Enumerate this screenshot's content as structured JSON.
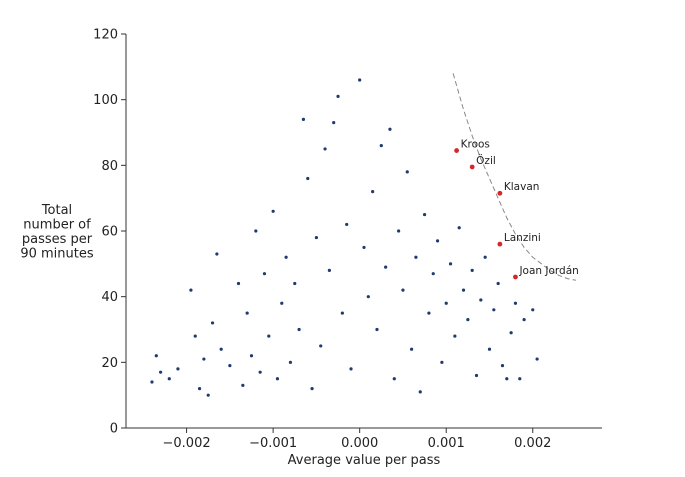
{
  "chart_data": {
    "type": "scatter",
    "xlabel": "Average value per pass",
    "ylabel_lines": [
      "Total",
      "number of",
      "passes per",
      "90 minutes"
    ],
    "xlim": [
      -0.0027,
      0.0028
    ],
    "ylim": [
      0,
      120
    ],
    "x_ticks": [
      -0.002,
      -0.001,
      0.0,
      0.001,
      0.002
    ],
    "x_tick_labels": [
      "−0.002",
      "−0.001",
      "0.000",
      "0.001",
      "0.002"
    ],
    "y_ticks": [
      0,
      20,
      40,
      60,
      80,
      100,
      120
    ],
    "y_tick_labels": [
      "0",
      "20",
      "40",
      "60",
      "80",
      "100",
      "120"
    ],
    "grid": false,
    "colors": {
      "points": "#1f3a6e",
      "highlight": "#d62728",
      "curve": "#888888"
    },
    "series": [
      {
        "role": "players",
        "points": [
          [
            -0.0024,
            14
          ],
          [
            -0.00235,
            22
          ],
          [
            -0.0023,
            17
          ],
          [
            -0.0022,
            15
          ],
          [
            -0.0021,
            18
          ],
          [
            -0.00195,
            42
          ],
          [
            -0.0019,
            28
          ],
          [
            -0.00185,
            12
          ],
          [
            -0.0018,
            21
          ],
          [
            -0.00175,
            10
          ],
          [
            -0.0017,
            32
          ],
          [
            -0.00165,
            53
          ],
          [
            -0.0016,
            24
          ],
          [
            -0.0015,
            19
          ],
          [
            -0.0014,
            44
          ],
          [
            -0.00135,
            13
          ],
          [
            -0.0013,
            35
          ],
          [
            -0.00125,
            22
          ],
          [
            -0.0012,
            60
          ],
          [
            -0.00115,
            17
          ],
          [
            -0.0011,
            47
          ],
          [
            -0.00105,
            28
          ],
          [
            -0.001,
            66
          ],
          [
            -0.00095,
            15
          ],
          [
            -0.0009,
            38
          ],
          [
            -0.00085,
            52
          ],
          [
            -0.0008,
            20
          ],
          [
            -0.00075,
            44
          ],
          [
            -0.0007,
            30
          ],
          [
            -0.00065,
            94
          ],
          [
            -0.0006,
            76
          ],
          [
            -0.00055,
            12
          ],
          [
            -0.0005,
            58
          ],
          [
            -0.00045,
            25
          ],
          [
            -0.0004,
            85
          ],
          [
            -0.00035,
            48
          ],
          [
            -0.0003,
            93
          ],
          [
            -0.00025,
            101
          ],
          [
            -0.0002,
            35
          ],
          [
            -0.00015,
            62
          ],
          [
            -0.0001,
            18
          ],
          [
            0.0,
            106
          ],
          [
            5e-05,
            55
          ],
          [
            0.0001,
            40
          ],
          [
            0.00015,
            72
          ],
          [
            0.0002,
            30
          ],
          [
            0.00025,
            86
          ],
          [
            0.0003,
            49
          ],
          [
            0.00035,
            91
          ],
          [
            0.0004,
            15
          ],
          [
            0.00045,
            60
          ],
          [
            0.0005,
            42
          ],
          [
            0.00055,
            78
          ],
          [
            0.0006,
            24
          ],
          [
            0.00065,
            52
          ],
          [
            0.0007,
            11
          ],
          [
            0.00075,
            65
          ],
          [
            0.0008,
            35
          ],
          [
            0.00085,
            47
          ],
          [
            0.0009,
            57
          ],
          [
            0.00095,
            20
          ],
          [
            0.001,
            38
          ],
          [
            0.00105,
            50
          ],
          [
            0.0011,
            28
          ],
          [
            0.00115,
            61
          ],
          [
            0.0012,
            42
          ],
          [
            0.00125,
            33
          ],
          [
            0.0013,
            48
          ],
          [
            0.00135,
            16
          ],
          [
            0.0014,
            39
          ],
          [
            0.00145,
            52
          ],
          [
            0.0015,
            24
          ],
          [
            0.00155,
            36
          ],
          [
            0.0016,
            44
          ],
          [
            0.00165,
            19
          ],
          [
            0.0017,
            15
          ],
          [
            0.00175,
            29
          ],
          [
            0.0018,
            38
          ],
          [
            0.00185,
            15
          ],
          [
            0.0019,
            33
          ],
          [
            0.002,
            36
          ],
          [
            0.00205,
            21
          ]
        ]
      },
      {
        "role": "highlighted",
        "points": [
          {
            "label": "Kroos",
            "x": 0.00112,
            "y": 84.5
          },
          {
            "label": "Özil",
            "x": 0.0013,
            "y": 79.5
          },
          {
            "label": "Klavan",
            "x": 0.00162,
            "y": 71.5
          },
          {
            "label": "Lanzini",
            "x": 0.00162,
            "y": 56
          },
          {
            "label": "Joan Jordán",
            "x": 0.0018,
            "y": 46
          }
        ]
      }
    ],
    "frontier_curve": [
      [
        0.00108,
        108
      ],
      [
        0.0012,
        97
      ],
      [
        0.0013,
        89
      ],
      [
        0.0014,
        82
      ],
      [
        0.0015,
        76
      ],
      [
        0.0016,
        70
      ],
      [
        0.0017,
        64
      ],
      [
        0.0018,
        59
      ],
      [
        0.0019,
        55
      ],
      [
        0.002,
        52
      ],
      [
        0.0021,
        50
      ],
      [
        0.0022,
        48
      ],
      [
        0.0023,
        46.5
      ],
      [
        0.0024,
        45.5
      ],
      [
        0.0025,
        45
      ]
    ]
  }
}
